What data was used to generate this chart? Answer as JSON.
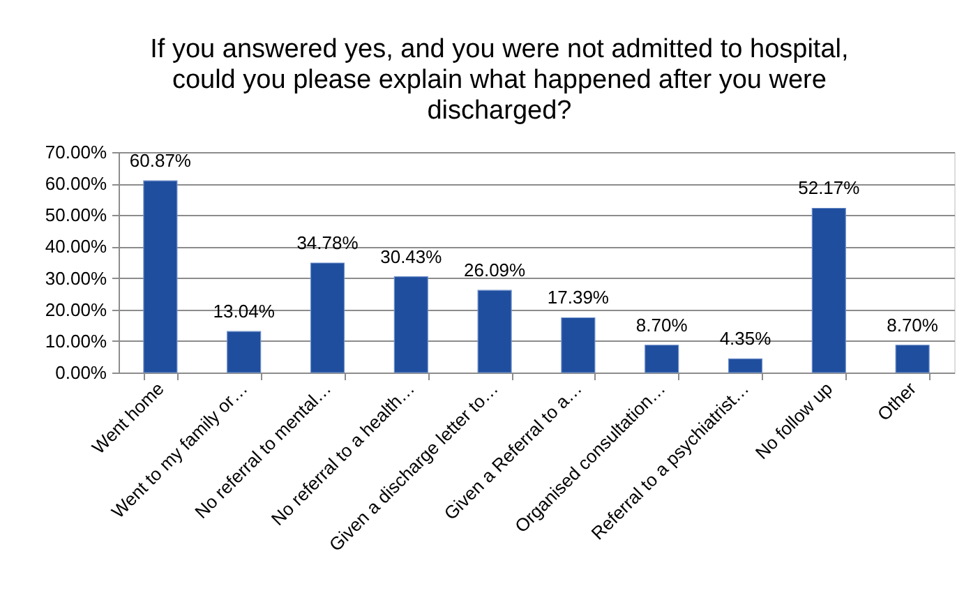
{
  "chart_data": {
    "type": "bar",
    "title": "If you answered yes, and you were not admitted to hospital, could you please explain what happened after you were discharged?",
    "categories": [
      "Went home",
      "Went to my family or…",
      "No referral to mental…",
      "No referral to a health…",
      "Given a discharge letter to…",
      "Given a Referral to a…",
      "Organised consultation…",
      "Referral to a psychiatrist…",
      "No follow up",
      "Other"
    ],
    "values": [
      60.87,
      13.04,
      34.78,
      30.43,
      26.09,
      17.39,
      8.7,
      4.35,
      52.17,
      8.7
    ],
    "value_labels": [
      "60.87%",
      "13.04%",
      "34.78%",
      "30.43%",
      "26.09%",
      "17.39%",
      "8.70%",
      "4.35%",
      "52.17%",
      "8.70%"
    ],
    "color": "#1f4e9e",
    "ylim": [
      0,
      70
    ],
    "yticks": [
      {
        "value": 0,
        "label": "0.00%"
      },
      {
        "value": 10,
        "label": "10.00%"
      },
      {
        "value": 20,
        "label": "20.00%"
      },
      {
        "value": 30,
        "label": "30.00%"
      },
      {
        "value": 40,
        "label": "40.00%"
      },
      {
        "value": 50,
        "label": "50.00%"
      },
      {
        "value": 60,
        "label": "60.00%"
      },
      {
        "value": 70,
        "label": "70.00%"
      }
    ],
    "grid": "y"
  }
}
